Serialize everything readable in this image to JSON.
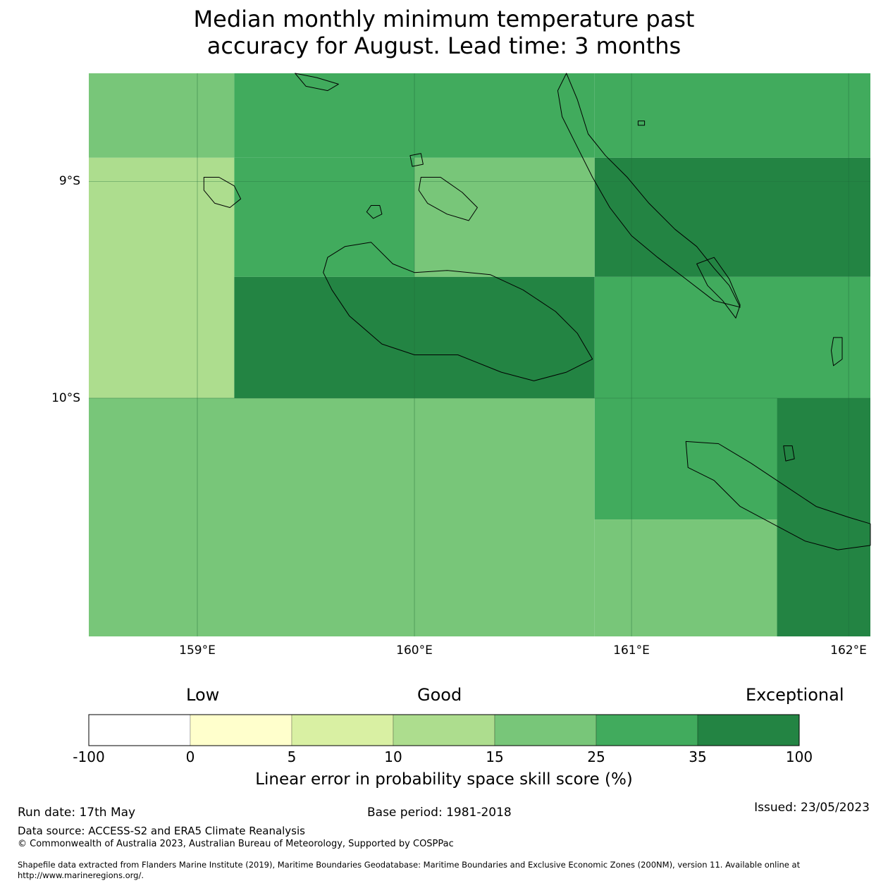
{
  "title": {
    "line1": "Median monthly minimum temperature past",
    "line2": "accuracy for August. Lead time: 3 months"
  },
  "map": {
    "lon_range": [
      158.5,
      162.1
    ],
    "lat_range": [
      -11.1,
      -8.5
    ],
    "lat_labels": [
      "9°S",
      "10°S"
    ],
    "lon_labels": [
      "159°E",
      "160°E",
      "161°E",
      "162°E"
    ],
    "cells": [
      {
        "lon0": 158.5,
        "lon1": 159.17,
        "lat0": -8.5,
        "lat1": -8.89,
        "cat": 4
      },
      {
        "lon0": 159.17,
        "lon1": 160.83,
        "lat0": -8.5,
        "lat1": -8.89,
        "cat": 5
      },
      {
        "lon0": 160.83,
        "lon1": 162.1,
        "lat0": -8.5,
        "lat1": -8.89,
        "cat": 5
      },
      {
        "lon0": 158.5,
        "lon1": 159.17,
        "lat0": -8.89,
        "lat1": -10.0,
        "cat": 3
      },
      {
        "lon0": 159.17,
        "lon1": 160.0,
        "lat0": -8.89,
        "lat1": -9.44,
        "cat": 5
      },
      {
        "lon0": 160.0,
        "lon1": 160.83,
        "lat0": -8.89,
        "lat1": -9.44,
        "cat": 4
      },
      {
        "lon0": 160.83,
        "lon1": 162.1,
        "lat0": -8.89,
        "lat1": -9.44,
        "cat": 6
      },
      {
        "lon0": 159.17,
        "lon1": 160.83,
        "lat0": -9.44,
        "lat1": -10.0,
        "cat": 6
      },
      {
        "lon0": 160.83,
        "lon1": 162.1,
        "lat0": -9.44,
        "lat1": -10.0,
        "cat": 5
      },
      {
        "lon0": 158.5,
        "lon1": 160.83,
        "lat0": -10.0,
        "lat1": -11.1,
        "cat": 4
      },
      {
        "lon0": 160.83,
        "lon1": 161.67,
        "lat0": -10.0,
        "lat1": -10.56,
        "cat": 5
      },
      {
        "lon0": 160.83,
        "lon1": 161.67,
        "lat0": -10.56,
        "lat1": -11.1,
        "cat": 4
      },
      {
        "lon0": 161.67,
        "lon1": 162.1,
        "lat0": -10.0,
        "lat1": -11.1,
        "cat": 6
      }
    ],
    "islands": [
      {
        "name": "Guadalcanal",
        "points": [
          [
            159.6,
            -9.35
          ],
          [
            159.68,
            -9.3
          ],
          [
            159.8,
            -9.28
          ],
          [
            159.9,
            -9.38
          ],
          [
            160.0,
            -9.42
          ],
          [
            160.15,
            -9.41
          ],
          [
            160.35,
            -9.43
          ],
          [
            160.5,
            -9.5
          ],
          [
            160.65,
            -9.6
          ],
          [
            160.75,
            -9.7
          ],
          [
            160.82,
            -9.82
          ],
          [
            160.7,
            -9.88
          ],
          [
            160.55,
            -9.92
          ],
          [
            160.4,
            -9.88
          ],
          [
            160.2,
            -9.8
          ],
          [
            160.0,
            -9.8
          ],
          [
            159.85,
            -9.75
          ],
          [
            159.7,
            -9.62
          ],
          [
            159.62,
            -9.5
          ],
          [
            159.58,
            -9.42
          ]
        ]
      },
      {
        "name": "Malaita",
        "points": [
          [
            160.7,
            -8.5
          ],
          [
            160.75,
            -8.62
          ],
          [
            160.8,
            -8.78
          ],
          [
            160.88,
            -8.88
          ],
          [
            160.98,
            -8.98
          ],
          [
            161.08,
            -9.1
          ],
          [
            161.2,
            -9.22
          ],
          [
            161.3,
            -9.3
          ],
          [
            161.38,
            -9.4
          ],
          [
            161.45,
            -9.48
          ],
          [
            161.5,
            -9.58
          ],
          [
            161.38,
            -9.55
          ],
          [
            161.25,
            -9.45
          ],
          [
            161.12,
            -9.35
          ],
          [
            161.0,
            -9.25
          ],
          [
            160.9,
            -9.12
          ],
          [
            160.82,
            -8.98
          ],
          [
            160.74,
            -8.82
          ],
          [
            160.68,
            -8.7
          ],
          [
            160.66,
            -8.58
          ]
        ]
      },
      {
        "name": "Small Malaita",
        "points": [
          [
            161.3,
            -9.38
          ],
          [
            161.38,
            -9.35
          ],
          [
            161.45,
            -9.45
          ],
          [
            161.5,
            -9.57
          ],
          [
            161.48,
            -9.63
          ],
          [
            161.42,
            -9.55
          ],
          [
            161.35,
            -9.48
          ]
        ]
      },
      {
        "name": "Makira",
        "points": [
          [
            161.25,
            -10.2
          ],
          [
            161.4,
            -10.21
          ],
          [
            161.55,
            -10.3
          ],
          [
            161.7,
            -10.4
          ],
          [
            161.85,
            -10.5
          ],
          [
            162.0,
            -10.55
          ],
          [
            162.1,
            -10.58
          ],
          [
            162.1,
            -10.68
          ],
          [
            161.95,
            -10.7
          ],
          [
            161.8,
            -10.66
          ],
          [
            161.65,
            -10.58
          ],
          [
            161.5,
            -10.5
          ],
          [
            161.38,
            -10.38
          ],
          [
            161.26,
            -10.32
          ]
        ]
      },
      {
        "name": "Nggela",
        "points": [
          [
            160.03,
            -8.98
          ],
          [
            160.12,
            -8.98
          ],
          [
            160.22,
            -9.05
          ],
          [
            160.29,
            -9.12
          ],
          [
            160.25,
            -9.18
          ],
          [
            160.15,
            -9.15
          ],
          [
            160.06,
            -9.1
          ],
          [
            160.02,
            -9.04
          ]
        ]
      },
      {
        "name": "Savo",
        "points": [
          [
            159.8,
            -9.11
          ],
          [
            159.84,
            -9.11
          ],
          [
            159.85,
            -9.15
          ],
          [
            159.81,
            -9.17
          ],
          [
            159.78,
            -9.14
          ]
        ]
      },
      {
        "name": "Russell Islands",
        "points": [
          [
            159.03,
            -8.98
          ],
          [
            159.1,
            -8.98
          ],
          [
            159.17,
            -9.02
          ],
          [
            159.2,
            -9.08
          ],
          [
            159.15,
            -9.12
          ],
          [
            159.08,
            -9.1
          ],
          [
            159.03,
            -9.04
          ]
        ]
      },
      {
        "name": "Ulawa",
        "points": [
          [
            161.93,
            -9.72
          ],
          [
            161.97,
            -9.72
          ],
          [
            161.97,
            -9.82
          ],
          [
            161.93,
            -9.85
          ],
          [
            161.92,
            -9.78
          ]
        ]
      },
      {
        "name": "Three Sisters",
        "points": [
          [
            161.7,
            -10.22
          ],
          [
            161.74,
            -10.22
          ],
          [
            161.75,
            -10.28
          ],
          [
            161.71,
            -10.29
          ]
        ]
      },
      {
        "name": "Florida north",
        "points": [
          [
            159.98,
            -8.88
          ],
          [
            160.03,
            -8.87
          ],
          [
            160.04,
            -8.92
          ],
          [
            159.99,
            -8.93
          ]
        ]
      },
      {
        "name": "Isabel coast",
        "points": [
          [
            159.45,
            -8.5
          ],
          [
            159.55,
            -8.52
          ],
          [
            159.65,
            -8.55
          ],
          [
            159.6,
            -8.58
          ],
          [
            159.5,
            -8.56
          ]
        ]
      },
      {
        "name": "Malaita north islet",
        "points": [
          [
            161.03,
            -8.72
          ],
          [
            161.06,
            -8.72
          ],
          [
            161.06,
            -8.74
          ],
          [
            161.03,
            -8.74
          ]
        ]
      }
    ]
  },
  "colorbar": {
    "words": [
      "Low",
      "Good",
      "Exceptional"
    ],
    "ticks": [
      "-100",
      "0",
      "5",
      "10",
      "15",
      "25",
      "35",
      "100"
    ],
    "colors": [
      "#ffffff",
      "#ffffcc",
      "#d9f0a3",
      "#addd8e",
      "#78c679",
      "#41ab5d",
      "#238443"
    ],
    "axis_label": "Linear error in probability space skill score (%)"
  },
  "footer": {
    "run_date": "Run date: 17th May",
    "base_period": "Base period: 1981-2018",
    "issued": "Issued: 23/05/2023",
    "data_source": "Data source: ACCESS-S2 and ERA5 Climate Reanalysis",
    "copyright": "© Commonwealth of Australia 2023, Australian Bureau of Meteorology, Supported by COSPPac",
    "shapefile_line1": "Shapefile data extracted from Flanders Marine Institute (2019), Maritime Boundaries Geodatabase: Maritime Boundaries and Exclusive Economic Zones (200NM), version 11. Available online at",
    "shapefile_line2": "http://www.marineregions.org/."
  }
}
